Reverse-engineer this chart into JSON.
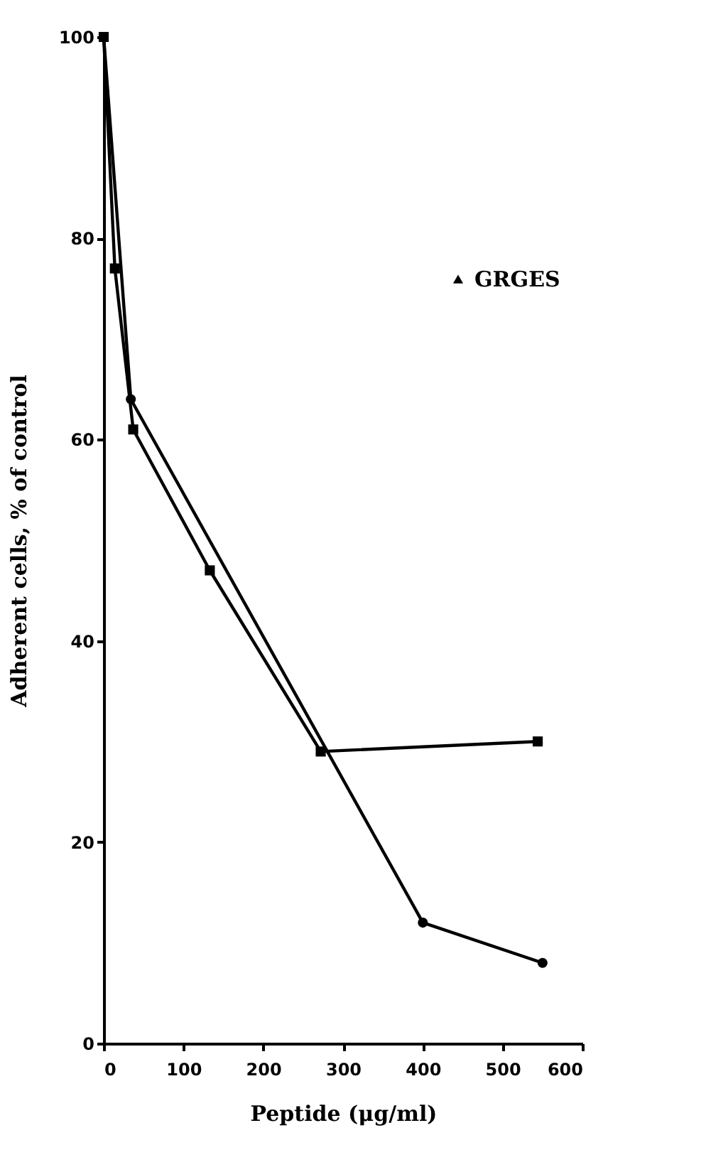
{
  "chart_data": {
    "type": "line",
    "xlabel": "Peptide (μg/ml)",
    "ylabel": "Adherent cells, % of control",
    "xlim": [
      0,
      600
    ],
    "xticks": [
      0,
      100,
      200,
      300,
      400,
      500,
      600
    ],
    "ylim": [
      0,
      100
    ],
    "yticks": [
      0,
      20,
      40,
      60,
      80,
      100
    ],
    "grid": false,
    "legend": "right",
    "series": [
      {
        "color": "#000000",
        "marker": "square",
        "x": [
          0,
          14,
          37,
          133,
          272,
          544
        ],
        "values": [
          100,
          77,
          61,
          47,
          29,
          30
        ]
      },
      {
        "color": "#000000",
        "marker": "circle",
        "x": [
          0,
          34,
          400,
          550
        ],
        "values": [
          100,
          64,
          12,
          8
        ]
      },
      {
        "name": "GRGES",
        "color": "#000000",
        "marker": "triangle",
        "values": [
          null
        ]
      }
    ]
  }
}
